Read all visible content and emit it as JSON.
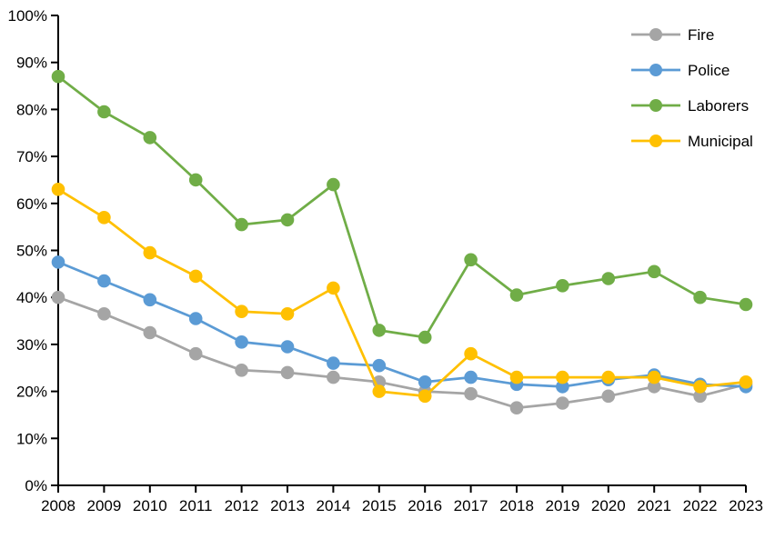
{
  "chart_data": {
    "type": "line",
    "title": "",
    "xlabel": "",
    "ylabel": "",
    "categories": [
      "2008",
      "2009",
      "2010",
      "2011",
      "2012",
      "2013",
      "2014",
      "2015",
      "2016",
      "2017",
      "2018",
      "2019",
      "2020",
      "2021",
      "2022",
      "2023"
    ],
    "series": [
      {
        "name": "Fire",
        "color": "#A5A5A5",
        "values": [
          40,
          36.5,
          32.5,
          28,
          24.5,
          24,
          23,
          22,
          20,
          19.5,
          16.5,
          17.5,
          19,
          21,
          19,
          21.5
        ]
      },
      {
        "name": "Police",
        "color": "#5B9BD5",
        "values": [
          47.5,
          43.5,
          39.5,
          35.5,
          30.5,
          29.5,
          26,
          25.5,
          22,
          23,
          21.5,
          21,
          22.5,
          23.5,
          21.5,
          21
        ]
      },
      {
        "name": "Laborers",
        "color": "#70AD47",
        "values": [
          87,
          79.5,
          74,
          65,
          55.5,
          56.5,
          64,
          33,
          31.5,
          48,
          40.5,
          42.5,
          44,
          45.5,
          40,
          38.5
        ]
      },
      {
        "name": "Municipal",
        "color": "#FFC000",
        "values": [
          63,
          57,
          49.5,
          44.5,
          37,
          36.5,
          42,
          20,
          19,
          28,
          23,
          23,
          23,
          23,
          21,
          22
        ]
      }
    ],
    "ylim": [
      0,
      100
    ],
    "y_tick_step": 10,
    "y_tick_labels": [
      "0%",
      "10%",
      "20%",
      "30%",
      "40%",
      "50%",
      "60%",
      "70%",
      "80%",
      "90%",
      "100%"
    ],
    "grid": false,
    "legend_position": "top-right",
    "axis_color": "#000000",
    "background_color": "#ffffff"
  }
}
